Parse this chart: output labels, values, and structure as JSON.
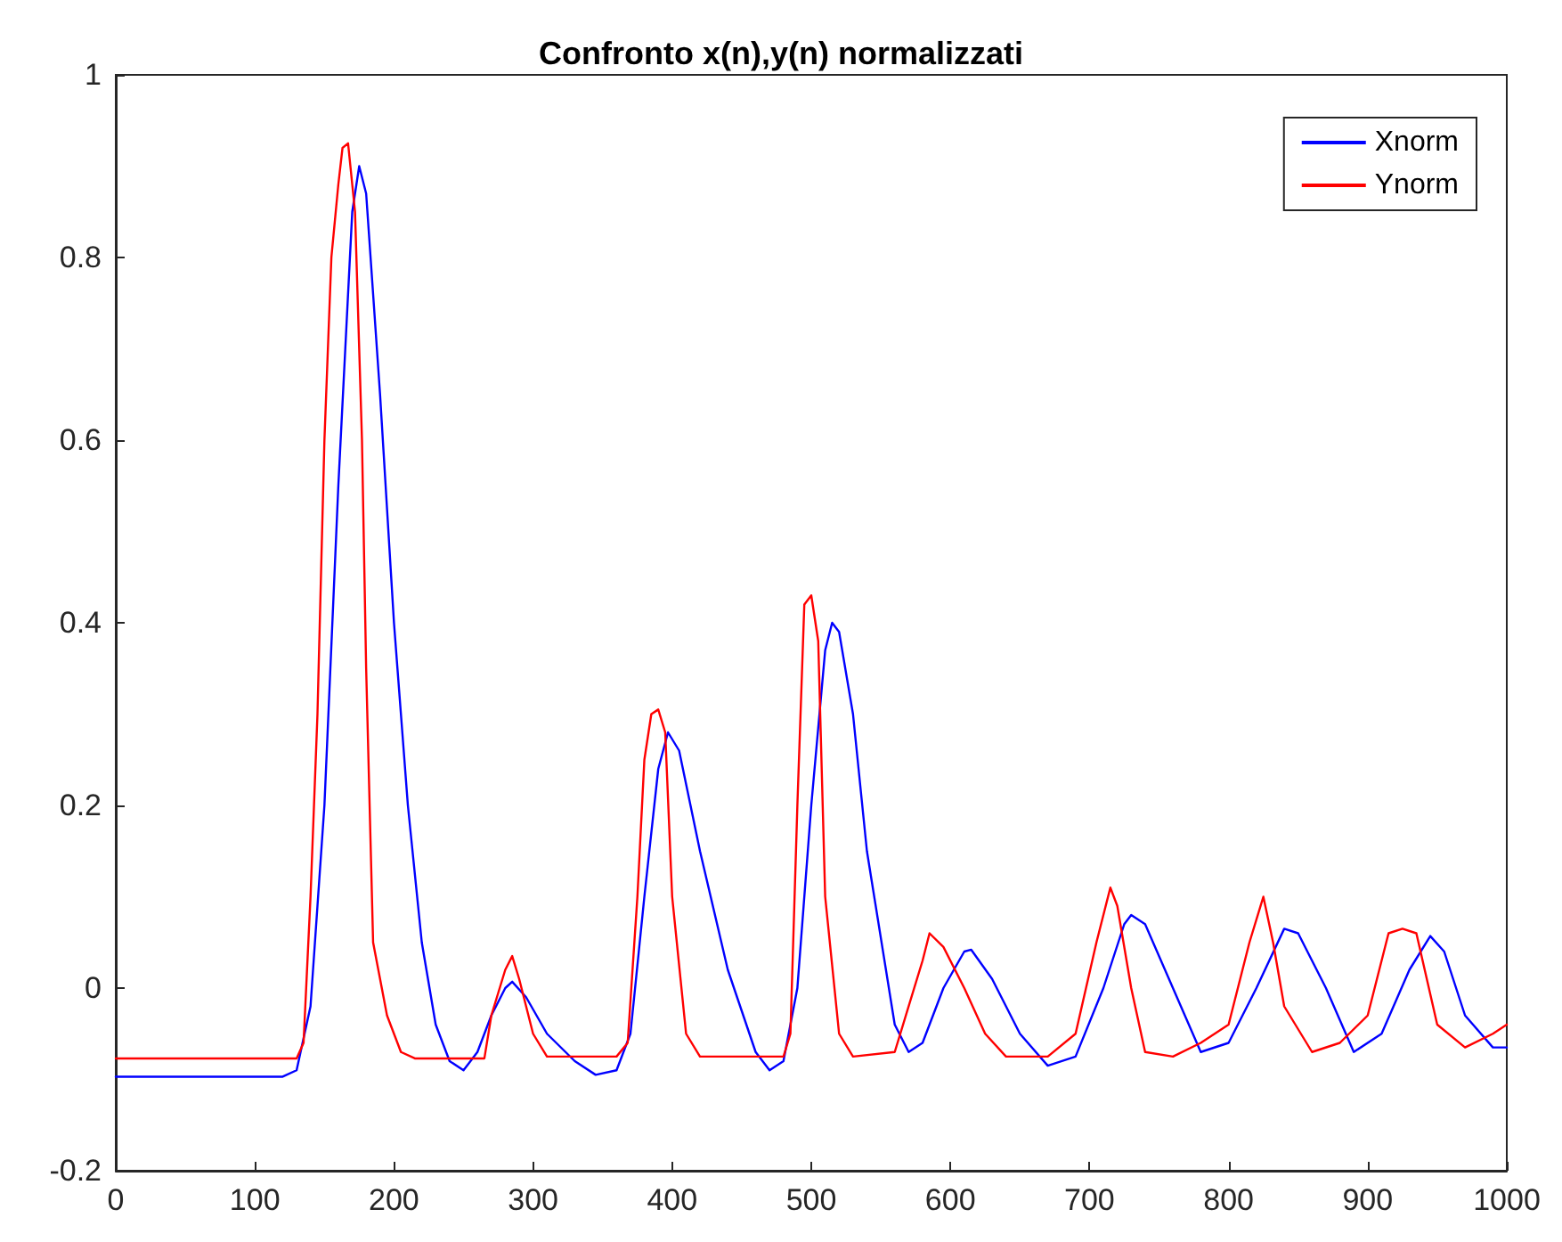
{
  "chart_data": {
    "type": "line",
    "title": "Confronto x(n),y(n) normalizzati",
    "xlim": [
      0,
      1000
    ],
    "xticks": [
      0,
      100,
      200,
      300,
      400,
      500,
      600,
      700,
      800,
      900,
      1000
    ],
    "ylim": [
      -0.2,
      1
    ],
    "yticks": [
      -0.2,
      0,
      0.2,
      0.4,
      0.6,
      0.8,
      1
    ],
    "grid": false,
    "legend": "top right",
    "marker": "none",
    "line_style": "solid",
    "series": [
      {
        "name": "Xnorm",
        "color": "#0000ff",
        "x": [
          0,
          120,
          130,
          140,
          150,
          160,
          170,
          175,
          180,
          190,
          200,
          210,
          220,
          230,
          240,
          250,
          260,
          270,
          280,
          285,
          295,
          310,
          330,
          345,
          360,
          370,
          380,
          390,
          397,
          405,
          420,
          440,
          460,
          470,
          480,
          490,
          500,
          510,
          515,
          520,
          530,
          540,
          560,
          570,
          580,
          595,
          610,
          615,
          630,
          650,
          670,
          690,
          710,
          725,
          730,
          740,
          760,
          780,
          800,
          820,
          840,
          850,
          870,
          890,
          910,
          930,
          945,
          955,
          970,
          990,
          1000
        ],
        "values": [
          -0.097,
          -0.097,
          -0.09,
          -0.02,
          0.2,
          0.55,
          0.85,
          0.9,
          0.87,
          0.65,
          0.4,
          0.2,
          0.05,
          -0.04,
          -0.08,
          -0.09,
          -0.07,
          -0.03,
          0,
          0.007,
          -0.01,
          -0.05,
          -0.08,
          -0.095,
          -0.09,
          -0.05,
          0.1,
          0.24,
          0.28,
          0.26,
          0.15,
          0.02,
          -0.07,
          -0.09,
          -0.08,
          0,
          0.2,
          0.37,
          0.4,
          0.39,
          0.3,
          0.15,
          -0.04,
          -0.07,
          -0.06,
          0,
          0.04,
          0.042,
          0.01,
          -0.05,
          -0.085,
          -0.075,
          0,
          0.07,
          0.08,
          0.07,
          0,
          -0.07,
          -0.06,
          0,
          0.065,
          0.06,
          0,
          -0.07,
          -0.05,
          0.02,
          0.057,
          0.04,
          -0.03,
          -0.065,
          -0.065
        ]
      },
      {
        "name": "Ynorm",
        "color": "#ff0000",
        "x": [
          0,
          130,
          135,
          140,
          145,
          150,
          155,
          160,
          163,
          167,
          172,
          177,
          180,
          185,
          195,
          205,
          215,
          265,
          270,
          280,
          285,
          290,
          300,
          310,
          360,
          368,
          375,
          380,
          385,
          390,
          395,
          400,
          410,
          420,
          480,
          485,
          490,
          495,
          500,
          505,
          510,
          520,
          530,
          560,
          580,
          585,
          595,
          610,
          625,
          640,
          670,
          690,
          705,
          715,
          720,
          730,
          740,
          760,
          780,
          800,
          815,
          825,
          832,
          840,
          860,
          880,
          900,
          915,
          925,
          935,
          950,
          970,
          990,
          1000
        ],
        "values": [
          -0.077,
          -0.077,
          -0.06,
          0.1,
          0.3,
          0.6,
          0.8,
          0.88,
          0.92,
          0.925,
          0.85,
          0.6,
          0.35,
          0.05,
          -0.03,
          -0.07,
          -0.077,
          -0.077,
          -0.03,
          0.02,
          0.035,
          0.01,
          -0.05,
          -0.075,
          -0.075,
          -0.06,
          0.1,
          0.25,
          0.3,
          0.305,
          0.28,
          0.1,
          -0.05,
          -0.075,
          -0.075,
          -0.05,
          0.2,
          0.42,
          0.43,
          0.38,
          0.1,
          -0.05,
          -0.075,
          -0.07,
          0.03,
          0.06,
          0.045,
          0,
          -0.05,
          -0.075,
          -0.075,
          -0.05,
          0.05,
          0.11,
          0.09,
          0,
          -0.07,
          -0.075,
          -0.06,
          -0.04,
          0.05,
          0.1,
          0.05,
          -0.02,
          -0.07,
          -0.06,
          -0.03,
          0.06,
          0.065,
          0.06,
          -0.04,
          -0.065,
          -0.05,
          -0.04
        ]
      }
    ]
  }
}
